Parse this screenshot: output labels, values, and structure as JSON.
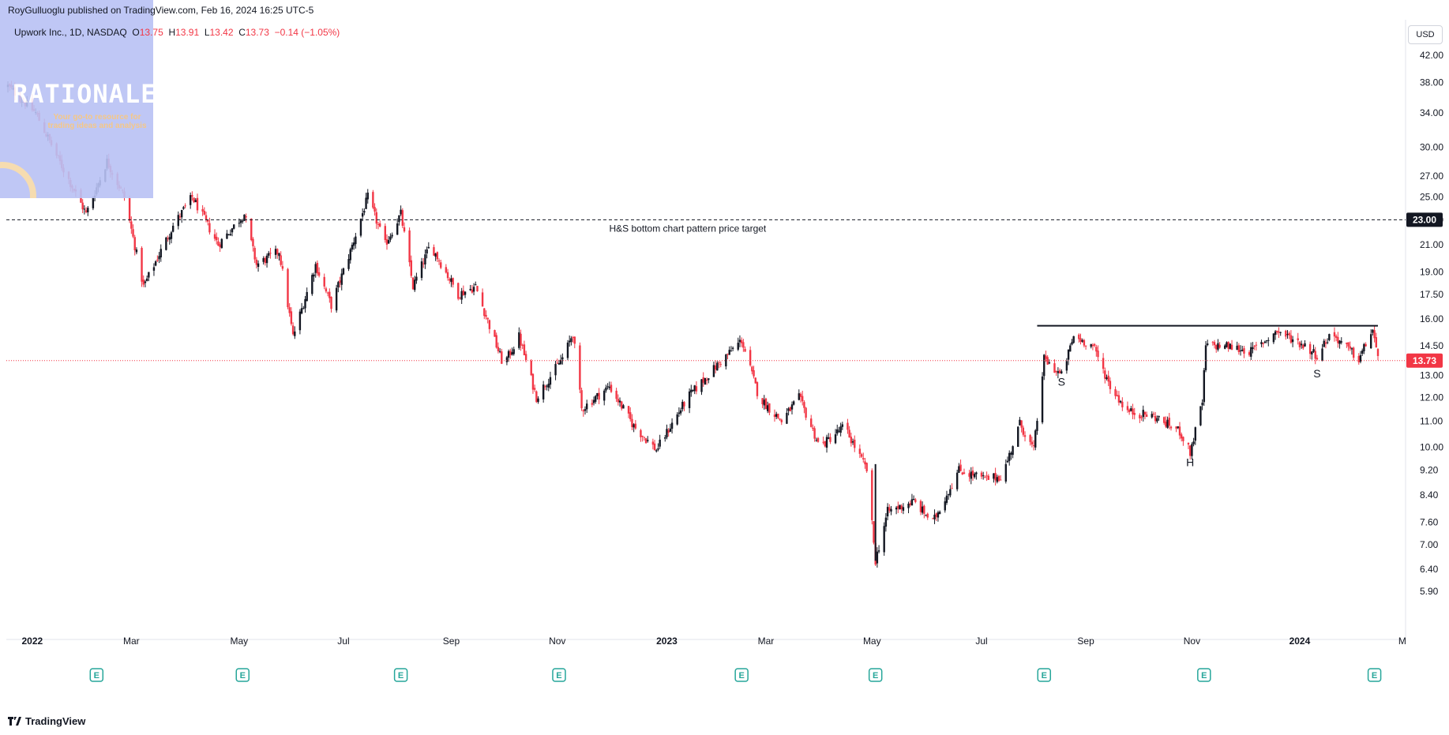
{
  "header": {
    "published": "RoyGulluoglu published on TradingView.com, Feb 16, 2024 16:25 UTC-5"
  },
  "symbol": {
    "name": "Upwork Inc., 1D, NASDAQ",
    "o_label": "O",
    "o_value": "13.75",
    "h_label": "H",
    "h_value": "13.91",
    "l_label": "L",
    "l_value": "13.42",
    "c_label": "C",
    "c_value": "13.73",
    "change": "−0.14 (−1.05%)"
  },
  "currency": "USD",
  "watermark": {
    "title": "RATIONALE",
    "tagline": "Your go-to resource for trading ideas and analysis"
  },
  "footer": {
    "brand": "TradingView",
    "logo_icon": "tradingview-logo-icon"
  },
  "colors": {
    "up": "#131722",
    "down": "#f23645",
    "current": "#f23645",
    "target": "#131722"
  },
  "chart_data": {
    "type": "candlestick",
    "scale": "log",
    "y_ticks": [
      "42.00",
      "38.00",
      "34.00",
      "30.00",
      "27.00",
      "25.00",
      "23.00",
      "21.00",
      "19.00",
      "17.50",
      "16.00",
      "14.50",
      "13.00",
      "12.00",
      "11.00",
      "10.00",
      "9.20",
      "8.40",
      "7.60",
      "7.00",
      "6.40",
      "5.90"
    ],
    "x_ticks": [
      "2022",
      "Mar",
      "May",
      "Jul",
      "Sep",
      "Nov",
      "2023",
      "Mar",
      "May",
      "Jul",
      "Sep",
      "Nov",
      "2024",
      "M"
    ],
    "earnings_marker": "E",
    "earnings_dates": [
      "2022-02-09",
      "2022-05-04",
      "2022-08-03",
      "2022-11-02",
      "2023-02-15",
      "2023-05-03",
      "2023-08-08",
      "2023-11-08",
      "2024-02-14"
    ],
    "target_line": {
      "value": 23.0,
      "label": "H&S bottom chart pattern price target",
      "price_label": "23.00"
    },
    "neckline": {
      "value": 15.6,
      "from": "2023-08-04",
      "to": "2024-02-16"
    },
    "current_price": {
      "value": 13.73,
      "label": "13.73"
    },
    "pattern_labels": [
      {
        "text": "S",
        "date": "2023-08-18",
        "price": 12.9
      },
      {
        "text": "H",
        "date": "2023-10-31",
        "price": 9.6
      },
      {
        "text": "S",
        "date": "2024-01-12",
        "price": 13.3
      }
    ],
    "key_points": [
      [
        "2021-12-20",
        37.5
      ],
      [
        "2022-01-05",
        34.0
      ],
      [
        "2022-01-20",
        28.0
      ],
      [
        "2022-02-03",
        23.5
      ],
      [
        "2022-02-15",
        28.5
      ],
      [
        "2022-02-25",
        25.0
      ],
      [
        "2022-03-08",
        18.0
      ],
      [
        "2022-03-25",
        22.5
      ],
      [
        "2022-04-05",
        25.0
      ],
      [
        "2022-04-20",
        21.0
      ],
      [
        "2022-05-05",
        23.5
      ],
      [
        "2022-05-12",
        19.5
      ],
      [
        "2022-05-25",
        20.5
      ],
      [
        "2022-06-02",
        15.0
      ],
      [
        "2022-06-15",
        19.5
      ],
      [
        "2022-06-24",
        16.8
      ],
      [
        "2022-07-05",
        20.5
      ],
      [
        "2022-07-15",
        25.0
      ],
      [
        "2022-07-25",
        21.0
      ],
      [
        "2022-08-03",
        23.5
      ],
      [
        "2022-08-10",
        18.0
      ],
      [
        "2022-08-20",
        21.0
      ],
      [
        "2022-09-05",
        17.5
      ],
      [
        "2022-09-15",
        18.0
      ],
      [
        "2022-10-01",
        13.5
      ],
      [
        "2022-10-10",
        15.0
      ],
      [
        "2022-10-20",
        12.0
      ],
      [
        "2022-11-05",
        14.0
      ],
      [
        "2022-11-10",
        15.2
      ],
      [
        "2022-11-15",
        11.5
      ],
      [
        "2022-12-01",
        12.5
      ],
      [
        "2022-12-15",
        10.8
      ],
      [
        "2022-12-28",
        9.9
      ],
      [
        "2023-01-15",
        12.0
      ],
      [
        "2023-02-01",
        13.5
      ],
      [
        "2023-02-15",
        14.8
      ],
      [
        "2023-02-25",
        12.0
      ],
      [
        "2023-03-10",
        11.0
      ],
      [
        "2023-03-20",
        12.0
      ],
      [
        "2023-04-01",
        10.0
      ],
      [
        "2023-04-15",
        10.8
      ],
      [
        "2023-04-28",
        9.2
      ],
      [
        "2023-05-03",
        6.6
      ],
      [
        "2023-05-10",
        7.9
      ],
      [
        "2023-05-25",
        8.2
      ],
      [
        "2023-06-05",
        7.6
      ],
      [
        "2023-06-20",
        9.2
      ],
      [
        "2023-07-05",
        8.9
      ],
      [
        "2023-07-15",
        9.0
      ],
      [
        "2023-07-25",
        10.9
      ],
      [
        "2023-08-02",
        9.9
      ],
      [
        "2023-08-08",
        13.8
      ],
      [
        "2023-08-18",
        13.0
      ],
      [
        "2023-08-25",
        15.0
      ],
      [
        "2023-09-05",
        14.5
      ],
      [
        "2023-09-15",
        12.5
      ],
      [
        "2023-09-25",
        11.4
      ],
      [
        "2023-10-10",
        11.2
      ],
      [
        "2023-10-25",
        10.6
      ],
      [
        "2023-10-31",
        9.8
      ],
      [
        "2023-11-07",
        11.8
      ],
      [
        "2023-11-09",
        14.5
      ],
      [
        "2023-11-20",
        14.5
      ],
      [
        "2023-12-05",
        14.2
      ],
      [
        "2023-12-20",
        15.3
      ],
      [
        "2024-01-05",
        14.5
      ],
      [
        "2024-01-12",
        14.0
      ],
      [
        "2024-01-20",
        15.2
      ],
      [
        "2024-02-05",
        13.8
      ],
      [
        "2024-02-13",
        15.4
      ],
      [
        "2024-02-16",
        13.73
      ]
    ]
  }
}
